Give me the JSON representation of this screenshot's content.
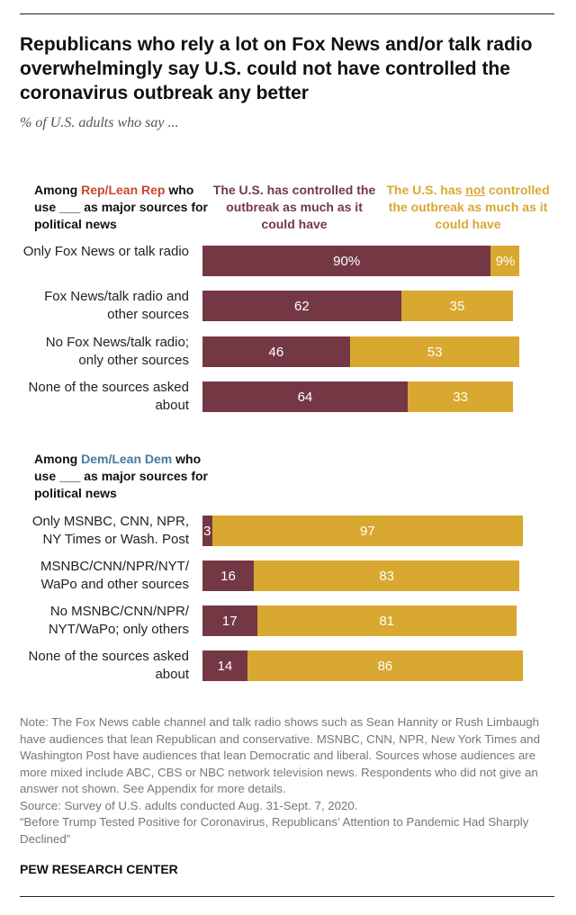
{
  "title": "Republicans who rely a lot on Fox News and/or talk radio overwhelmingly say U.S. could not have controlled the coronavirus outbreak any better",
  "subtitle": "% of U.S. adults who say ...",
  "colors": {
    "controlled": "#743844",
    "not_controlled": "#d8a830",
    "rep": "#c9472b",
    "dem": "#457a9e"
  },
  "legend": {
    "controlled": "The U.S. has controlled the outbreak as much as it could have",
    "not_controlled_pre": "The U.S. has ",
    "not_controlled_emph": "not",
    "not_controlled_post": " controlled the outbreak as much as it could have"
  },
  "chart_data": {
    "type": "bar",
    "orientation": "horizontal",
    "stacked": true,
    "unit": "%",
    "xlim": [
      0,
      100
    ],
    "series_names": [
      "The U.S. has controlled the outbreak as much as it could have",
      "The U.S. has not controlled the outbreak as much as it could have"
    ],
    "groups": [
      {
        "heading_pre": "Among ",
        "heading_party": "Rep/Lean Rep",
        "heading_post": "who use ___ as major sources for political news",
        "categories": [
          "Only Fox News or talk radio",
          "Fox News/talk radio and other sources",
          "No Fox News/talk radio; only other sources",
          "None of the sources asked about"
        ],
        "controlled": [
          90,
          62,
          46,
          64
        ],
        "not_controlled": [
          9,
          35,
          53,
          33
        ],
        "first_row_labels": [
          "90%",
          "9%"
        ]
      },
      {
        "heading_pre": "Among ",
        "heading_party": "Dem/Lean Dem",
        "heading_post": "who use ___ as major sources for political news",
        "categories": [
          "Only MSNBC, CNN, NPR, NY Times or Wash. Post",
          "MSNBC/CNN/NPR/NYT/ WaPo and other sources",
          "No MSNBC/CNN/NPR/ NYT/WaPo; only others",
          "None of the sources asked about"
        ],
        "controlled": [
          3,
          16,
          17,
          14
        ],
        "not_controlled": [
          97,
          83,
          81,
          86
        ]
      }
    ]
  },
  "notes": [
    "Note: The Fox News cable channel and talk radio shows such as Sean Hannity or Rush Limbaugh have audiences that lean Republican and conservative. MSNBC, CNN, NPR, New York Times and Washington Post have audiences that lean Democratic and liberal. Sources whose audiences are more mixed include ABC, CBS or NBC network television news. Respondents who did not give an answer not shown. See Appendix for more details.",
    "Source: Survey of U.S. adults conducted Aug. 31-Sept. 7, 2020.",
    "“Before Trump Tested Positive for Coronavirus, Republicans’ Attention to Pandemic Had Sharply Declined”"
  ],
  "brand": "PEW RESEARCH CENTER"
}
